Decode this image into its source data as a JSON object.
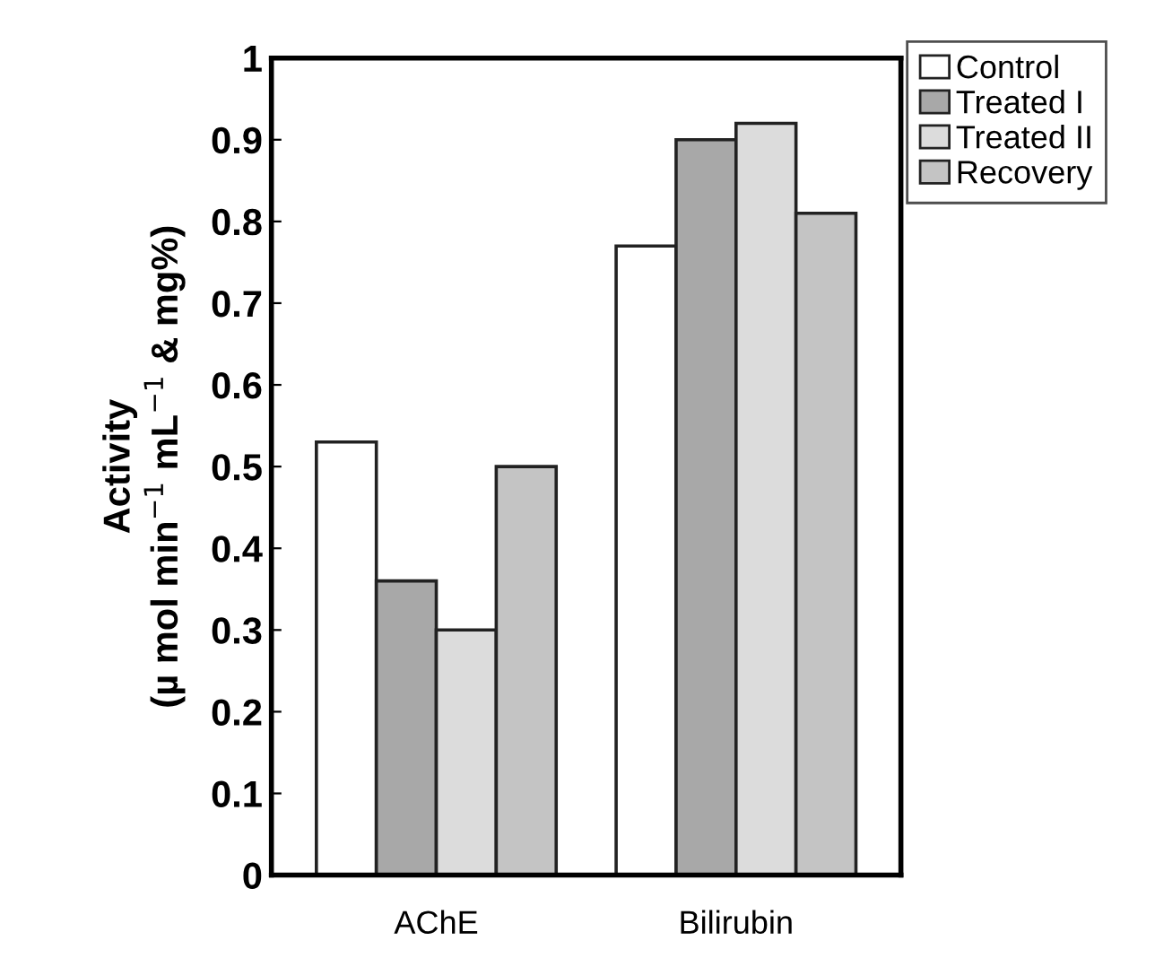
{
  "chart_data": {
    "type": "bar",
    "ylabel": "Activity\n(µ mol min$^{−1}$ mL$^{−1}$ & mg%)",
    "categories": [
      "AChE",
      "Bilirubin"
    ],
    "series": [
      {
        "name": "Control",
        "color": "#ffffff",
        "values": [
          0.53,
          0.77
        ]
      },
      {
        "name": "Treated I",
        "color": "#a8a8a8",
        "values": [
          0.36,
          0.9
        ]
      },
      {
        "name": "Treated II",
        "color": "#dcdcdc",
        "values": [
          0.3,
          0.92
        ]
      },
      {
        "name": "Recovery",
        "color": "#c4c4c4",
        "values": [
          0.5,
          0.81
        ]
      }
    ],
    "ylim": [
      0,
      1
    ],
    "yticks": [
      0,
      0.1,
      0.2,
      0.3,
      0.4,
      0.5,
      0.6,
      0.7,
      0.8,
      0.9,
      1
    ],
    "grid": false,
    "legend": "top right"
  }
}
